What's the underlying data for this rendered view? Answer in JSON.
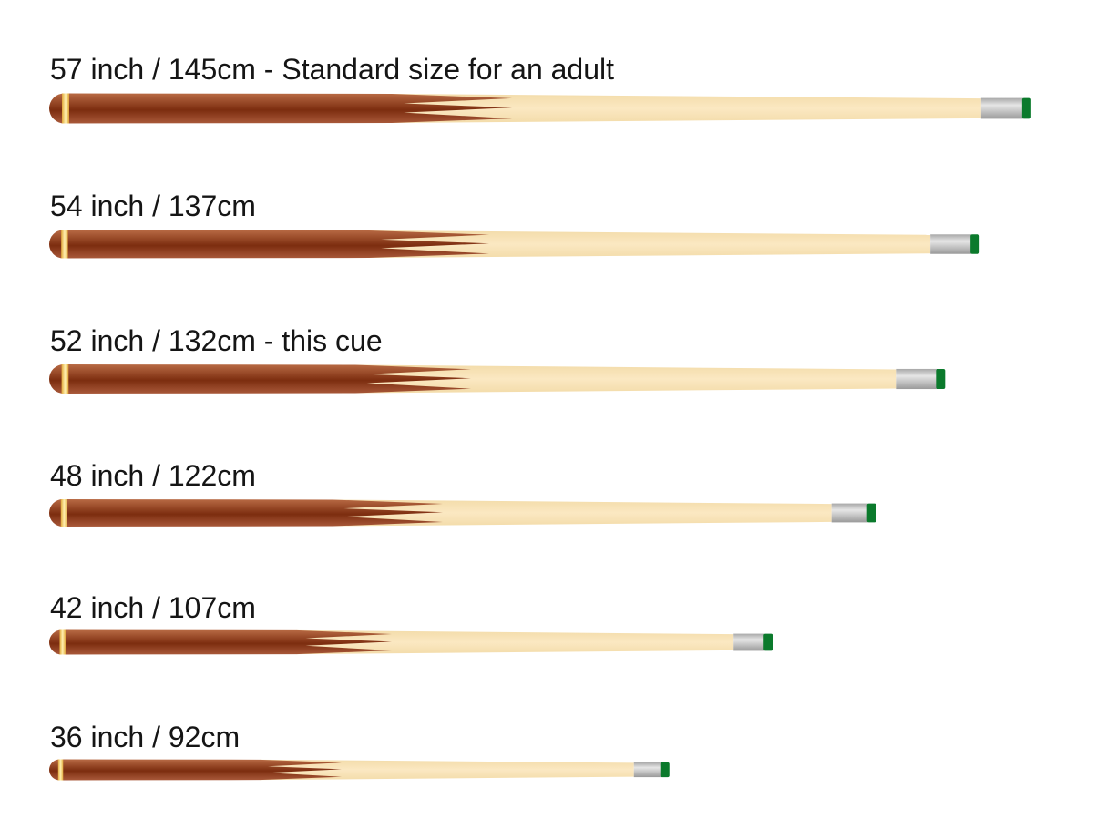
{
  "cues": [
    {
      "label": "57 inch / 145cm - Standard size for an adult",
      "length_inch": 57,
      "length_cm": 145
    },
    {
      "label": "54 inch / 137cm",
      "length_inch": 54,
      "length_cm": 137
    },
    {
      "label": "52 inch / 132cm - this cue",
      "length_inch": 52,
      "length_cm": 132
    },
    {
      "label": "48 inch / 122cm",
      "length_inch": 48,
      "length_cm": 122
    },
    {
      "label": "42 inch / 107cm",
      "length_inch": 42,
      "length_cm": 107
    },
    {
      "label": "36 inch / 92cm",
      "length_inch": 36,
      "length_cm": 92
    }
  ],
  "colors": {
    "butt": "#8a3a18",
    "butt_light": "#b86a44",
    "ring": "#f3c95a",
    "shaft": "#f8e3b6",
    "ferrule": "#c4c4c4",
    "tip": "#0b7a2c"
  }
}
